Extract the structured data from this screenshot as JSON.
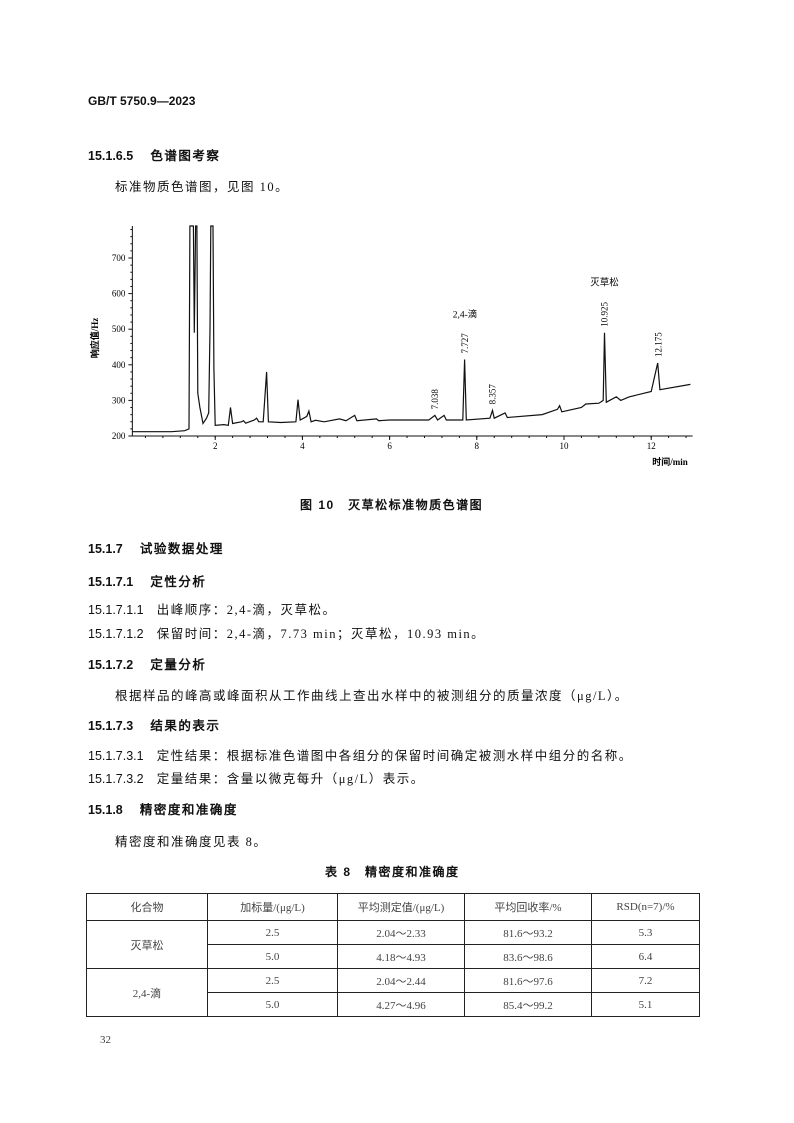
{
  "header": {
    "standard": "GB/T 5750.9—2023"
  },
  "sections": [
    {
      "num": "15.1.6.5",
      "title": "色谱图考察"
    },
    {
      "body": "标准物质色谱图，见图 10。"
    }
  ],
  "figure": {
    "caption": "图 10　灭草松标准物质色谱图"
  },
  "chart_data": {
    "type": "line",
    "title": "",
    "xlabel": "时间/min",
    "ylabel": "响应值/Hz",
    "xlim": [
      0.1,
      12.95
    ],
    "ylim": [
      200,
      790
    ],
    "xticks": [
      2,
      4,
      6,
      8,
      10,
      12
    ],
    "yticks": [
      200,
      300,
      400,
      500,
      600,
      700
    ],
    "grid": false,
    "trace": [
      [
        0.1,
        212
      ],
      [
        1.0,
        212
      ],
      [
        1.3,
        215
      ],
      [
        1.4,
        220
      ],
      [
        1.42,
        800
      ],
      [
        1.5,
        800
      ],
      [
        1.52,
        490
      ],
      [
        1.55,
        800
      ],
      [
        1.58,
        800
      ],
      [
        1.6,
        320
      ],
      [
        1.65,
        280
      ],
      [
        1.72,
        235
      ],
      [
        1.8,
        250
      ],
      [
        1.85,
        265
      ],
      [
        1.88,
        500
      ],
      [
        1.9,
        800
      ],
      [
        1.95,
        800
      ],
      [
        1.97,
        390
      ],
      [
        2.0,
        230
      ],
      [
        2.2,
        232
      ],
      [
        2.3,
        230
      ],
      [
        2.35,
        280
      ],
      [
        2.4,
        235
      ],
      [
        2.6,
        240
      ],
      [
        2.65,
        243
      ],
      [
        2.7,
        236
      ],
      [
        2.9,
        245
      ],
      [
        2.95,
        250
      ],
      [
        3.0,
        240
      ],
      [
        3.1,
        240
      ],
      [
        3.18,
        380
      ],
      [
        3.22,
        240
      ],
      [
        3.5,
        238
      ],
      [
        3.85,
        240
      ],
      [
        3.9,
        302
      ],
      [
        3.95,
        245
      ],
      [
        4.1,
        255
      ],
      [
        4.15,
        270
      ],
      [
        4.2,
        240
      ],
      [
        4.3,
        244
      ],
      [
        4.5,
        240
      ],
      [
        4.85,
        248
      ],
      [
        5.0,
        243
      ],
      [
        5.2,
        258
      ],
      [
        5.25,
        243
      ],
      [
        5.7,
        248
      ],
      [
        5.75,
        243
      ],
      [
        6.0,
        245
      ],
      [
        6.9,
        245
      ],
      [
        7.04,
        258
      ],
      [
        7.1,
        245
      ],
      [
        7.25,
        258
      ],
      [
        7.3,
        245
      ],
      [
        7.68,
        245
      ],
      [
        7.72,
        415
      ],
      [
        7.76,
        245
      ],
      [
        8.3,
        250
      ],
      [
        8.36,
        272
      ],
      [
        8.4,
        250
      ],
      [
        8.65,
        265
      ],
      [
        8.7,
        252
      ],
      [
        9.5,
        260
      ],
      [
        9.85,
        275
      ],
      [
        9.9,
        285
      ],
      [
        9.95,
        268
      ],
      [
        10.4,
        280
      ],
      [
        10.5,
        290
      ],
      [
        10.8,
        292
      ],
      [
        10.9,
        300
      ],
      [
        10.93,
        490
      ],
      [
        10.97,
        295
      ],
      [
        11.2,
        310
      ],
      [
        11.3,
        300
      ],
      [
        11.5,
        310
      ],
      [
        12.0,
        325
      ],
      [
        12.15,
        405
      ],
      [
        12.2,
        330
      ],
      [
        12.9,
        345
      ]
    ],
    "peak_labels": [
      {
        "text": "7.038",
        "x": 7.04,
        "y": 258
      },
      {
        "text": "7.727",
        "x": 7.73,
        "y": 415
      },
      {
        "text": "8.357",
        "x": 8.36,
        "y": 272
      },
      {
        "text": "10.925",
        "x": 10.93,
        "y": 490
      },
      {
        "text": "12.175",
        "x": 12.17,
        "y": 405
      }
    ],
    "compound_labels": [
      {
        "text": "2,4-滴",
        "x": 7.73
      },
      {
        "text": "灭草松",
        "x": 10.93
      }
    ]
  },
  "sections2": {
    "s1517": {
      "num": "15.1.7",
      "title": "试验数据处理"
    },
    "s15171": {
      "num": "15.1.7.1",
      "title": "定性分析"
    },
    "s151711": {
      "num": "15.1.7.1.1",
      "text": "出峰顺序：2,4-滴，灭草松。"
    },
    "s151712": {
      "num": "15.1.7.1.2",
      "text": "保留时间：2,4-滴，7.73 min；灭草松，10.93 min。"
    },
    "s15172": {
      "num": "15.1.7.2",
      "title": "定量分析"
    },
    "s15172_body": "根据样品的峰高或峰面积从工作曲线上查出水样中的被测组分的质量浓度（μg/L）。",
    "s15173": {
      "num": "15.1.7.3",
      "title": "结果的表示"
    },
    "s151731": {
      "num": "15.1.7.3.1",
      "text": "定性结果：根据标准色谱图中各组分的保留时间确定被测水样中组分的名称。"
    },
    "s151732": {
      "num": "15.1.7.3.2",
      "text": "定量结果：含量以微克每升（μg/L）表示。"
    },
    "s1518": {
      "num": "15.1.8",
      "title": "精密度和准确度"
    },
    "s1518_body": "精密度和准确度见表 8。"
  },
  "table": {
    "title": "表 8　精密度和准确度",
    "headers": [
      "化合物",
      "加标量/(μg/L)",
      "平均测定值/(μg/L)",
      "平均回收率/%",
      "RSD(n=7)/%"
    ],
    "groups": [
      {
        "compound": "灭草松",
        "rows": [
          [
            "2.5",
            "2.04～2.33",
            "81.6～93.2",
            "5.3"
          ],
          [
            "5.0",
            "4.18～4.93",
            "83.6～98.6",
            "6.4"
          ]
        ]
      },
      {
        "compound": "2,4-滴",
        "rows": [
          [
            "2.5",
            "2.04～2.44",
            "81.6～97.6",
            "7.2"
          ],
          [
            "5.0",
            "4.27～4.96",
            "85.4～99.2",
            "5.1"
          ]
        ]
      }
    ]
  },
  "footer": {
    "page_number": "32"
  }
}
